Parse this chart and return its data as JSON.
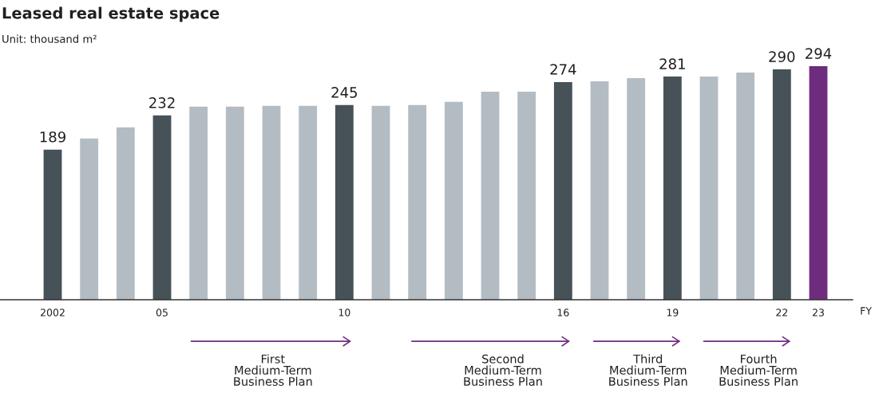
{
  "chart_data": {
    "type": "bar",
    "title": "Leased real estate space",
    "subtitle": "Unit: thousand m²",
    "xlabel": "FY",
    "categories": [
      "2002",
      null,
      null,
      "05",
      null,
      null,
      null,
      null,
      "10",
      null,
      null,
      null,
      null,
      null,
      "16",
      null,
      null,
      "19",
      null,
      null,
      "22",
      "23"
    ],
    "values": [
      189,
      203,
      217,
      232,
      243,
      243,
      244,
      244,
      245,
      244,
      245,
      249,
      262,
      262,
      274,
      275,
      279,
      281,
      281,
      286,
      290,
      294
    ],
    "value_labels": [
      "189",
      null,
      null,
      "232",
      null,
      null,
      null,
      null,
      "245",
      null,
      null,
      null,
      null,
      null,
      "274",
      null,
      null,
      "281",
      null,
      null,
      "290",
      "294"
    ],
    "colors": [
      "#475158",
      "#b4bcc3",
      "#b4bcc3",
      "#475158",
      "#b4bcc3",
      "#b4bcc3",
      "#b4bcc3",
      "#b4bcc3",
      "#475158",
      "#b4bcc3",
      "#b4bcc3",
      "#b4bcc3",
      "#b4bcc3",
      "#b4bcc3",
      "#475158",
      "#b4bcc3",
      "#b4bcc3",
      "#475158",
      "#b4bcc3",
      "#b4bcc3",
      "#475158",
      "#6e2c7e"
    ],
    "annotations": [
      "First\nMedium-Term\nBusiness Plan",
      "Second\nMedium-Term\nBusiness Plan",
      "Third\nMedium-Term\nBusiness Plan",
      "Fourth\nMedium-Term\nBusiness Plan"
    ],
    "tick_labels": "x",
    "grid": false,
    "legend": false
  }
}
